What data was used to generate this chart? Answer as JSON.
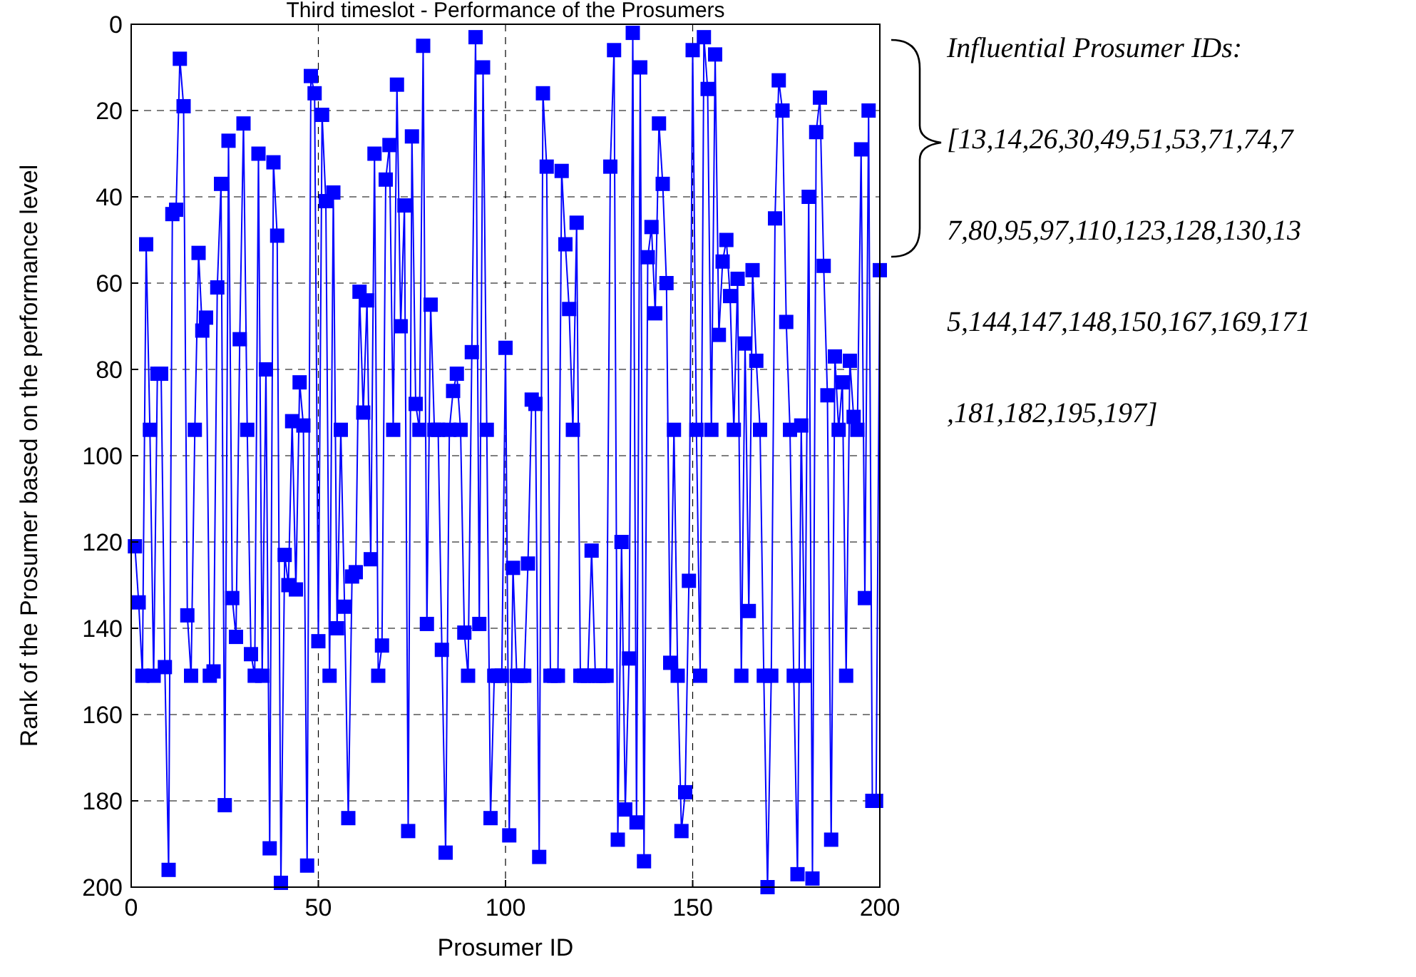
{
  "chart_data": {
    "type": "line",
    "title": "Third timeslot - Performance of the Prosumers",
    "xlabel": "Prosumer ID",
    "ylabel": "Rank of the Prosumer based on the performance level",
    "xlim": [
      0,
      200
    ],
    "xticks": [
      0,
      50,
      100,
      150,
      200
    ],
    "ylim": [
      200,
      0
    ],
    "yticks": [
      0,
      20,
      40,
      60,
      80,
      100,
      120,
      140,
      160,
      180,
      200
    ],
    "grid": true,
    "marker": "square",
    "line_style": "solid",
    "annotations": [
      "Influential Prosumer IDs:",
      "[13,14,26,30,49,51,53,71,74,77,80,95,97,110,123,128,130,135,144,147,148,150,167,169,171,181,182,195,197]"
    ],
    "series": [
      {
        "color": "#0000ff",
        "x": [
          1,
          2,
          3,
          4,
          5,
          6,
          7,
          8,
          9,
          10,
          11,
          12,
          13,
          14,
          15,
          16,
          17,
          18,
          19,
          20,
          21,
          22,
          23,
          24,
          25,
          26,
          27,
          28,
          29,
          30,
          31,
          32,
          33,
          34,
          35,
          36,
          37,
          38,
          39,
          40,
          41,
          42,
          43,
          44,
          45,
          46,
          47,
          48,
          49,
          50,
          51,
          52,
          53,
          54,
          55,
          56,
          57,
          58,
          59,
          60,
          61,
          62,
          63,
          64,
          65,
          66,
          67,
          68,
          69,
          70,
          71,
          72,
          73,
          74,
          75,
          76,
          77,
          78,
          79,
          80,
          81,
          82,
          83,
          84,
          85,
          86,
          87,
          88,
          89,
          90,
          91,
          92,
          93,
          94,
          95,
          96,
          97,
          98,
          99,
          100,
          101,
          102,
          103,
          104,
          105,
          106,
          107,
          108,
          109,
          110,
          111,
          112,
          113,
          114,
          115,
          116,
          117,
          118,
          119,
          120,
          121,
          122,
          123,
          124,
          125,
          126,
          127,
          128,
          129,
          130,
          131,
          132,
          133,
          134,
          135,
          136,
          137,
          138,
          139,
          140,
          141,
          142,
          143,
          144,
          145,
          146,
          147,
          148,
          149,
          150,
          151,
          152,
          153,
          154,
          155,
          156,
          157,
          158,
          159,
          160,
          161,
          162,
          163,
          164,
          165,
          166,
          167,
          168,
          169,
          170,
          171,
          172,
          173,
          174,
          175,
          176,
          177,
          178,
          179,
          180,
          181,
          182,
          183,
          184,
          185,
          186,
          187,
          188,
          189,
          190,
          191,
          192,
          193,
          194,
          195,
          196,
          197,
          198,
          199,
          200
        ],
        "values": [
          121,
          134,
          151,
          51,
          94,
          151,
          81,
          81,
          149,
          196,
          44,
          43,
          8,
          19,
          137,
          151,
          94,
          53,
          71,
          68,
          151,
          150,
          61,
          37,
          181,
          27,
          133,
          142,
          73,
          23,
          94,
          146,
          151,
          30,
          151,
          80,
          191,
          32,
          49,
          199,
          123,
          130,
          92,
          131,
          83,
          93,
          195,
          12,
          16,
          143,
          21,
          41,
          151,
          39,
          140,
          94,
          135,
          184,
          128,
          127,
          62,
          90,
          64,
          124,
          30,
          151,
          144,
          36,
          28,
          94,
          14,
          70,
          42,
          187,
          26,
          88,
          94,
          5,
          139,
          65,
          94,
          94,
          145,
          192,
          94,
          85,
          81,
          94,
          141,
          151,
          76,
          3,
          139,
          10,
          94,
          184,
          151,
          151,
          151,
          75,
          188,
          126,
          151,
          151,
          151,
          125,
          87,
          88,
          193,
          16,
          33,
          151,
          151,
          151,
          34,
          51,
          66,
          94,
          46,
          151,
          151,
          151,
          122,
          151,
          151,
          151,
          151,
          33,
          6,
          189,
          120,
          182,
          147,
          2,
          185,
          10,
          194,
          54,
          47,
          67,
          23,
          37,
          60,
          148,
          94,
          151,
          187,
          178,
          129,
          6,
          94,
          151,
          3,
          15,
          94,
          7,
          72,
          55,
          50,
          63,
          94,
          59,
          151,
          74,
          136,
          57,
          78,
          94,
          151,
          200,
          151,
          45,
          13,
          20,
          69,
          94,
          151,
          197,
          93,
          151,
          40,
          198,
          25,
          17,
          56,
          86,
          189,
          77,
          94,
          83,
          151,
          78,
          91,
          94,
          29,
          133,
          20,
          180,
          180,
          57
        ]
      }
    ]
  }
}
